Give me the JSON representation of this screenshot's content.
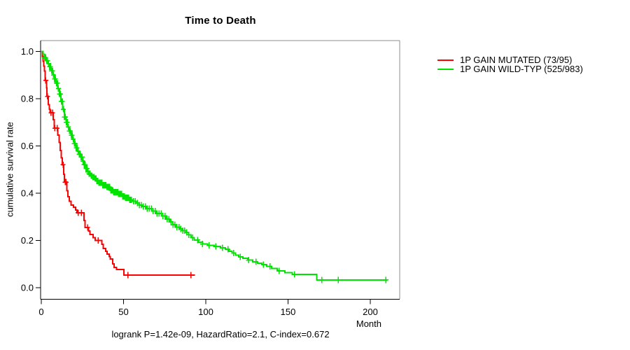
{
  "chart_data": {
    "type": "line",
    "subtype": "kaplan-meier-step",
    "title": "Time to Death",
    "xlabel": "Month",
    "ylabel": "cumulative survival rate",
    "annotation": "logrank P=1.42e-09, HazardRatio=2.1, C-index=0.672",
    "x_ticks": [
      0,
      50,
      100,
      150,
      200
    ],
    "x_tick_labels": [
      "0",
      "50",
      "100",
      "150",
      "200"
    ],
    "y_ticks": [
      0.0,
      0.2,
      0.4,
      0.6,
      0.8,
      1.0
    ],
    "y_tick_labels": [
      "0.0",
      "0.2",
      "0.4",
      "0.6",
      "0.8",
      "1.0"
    ],
    "xlim": [
      0,
      218
    ],
    "ylim": [
      0,
      1
    ],
    "grid": false,
    "legend_position": "right-outside",
    "colors": {
      "axis": "#000000",
      "frame": "#8e8e8e",
      "background": "#ffffff"
    },
    "series": [
      {
        "name": "1P GAIN MUTATED (73/95)",
        "color": "#ff0000",
        "start": [
          0,
          1.0
        ],
        "end_month": 93.5,
        "steps": [
          [
            0.7,
            0.979
          ],
          [
            1.1,
            0.958
          ],
          [
            1.5,
            0.937
          ],
          [
            1.9,
            0.916
          ],
          [
            2.3,
            0.877
          ],
          [
            3.1,
            0.845
          ],
          [
            3.5,
            0.81
          ],
          [
            4.2,
            0.775
          ],
          [
            4.8,
            0.755
          ],
          [
            5.4,
            0.74
          ],
          [
            7.3,
            0.71
          ],
          [
            7.8,
            0.675
          ],
          [
            10.1,
            0.645
          ],
          [
            10.8,
            0.615
          ],
          [
            11.5,
            0.58
          ],
          [
            12.1,
            0.55
          ],
          [
            12.7,
            0.52
          ],
          [
            13.7,
            0.48
          ],
          [
            14.1,
            0.447
          ],
          [
            15.6,
            0.41
          ],
          [
            16.2,
            0.385
          ],
          [
            17.1,
            0.365
          ],
          [
            18.1,
            0.35
          ],
          [
            19.5,
            0.34
          ],
          [
            20.8,
            0.329
          ],
          [
            21.8,
            0.317
          ],
          [
            26.0,
            0.285
          ],
          [
            26.6,
            0.255
          ],
          [
            28.8,
            0.24
          ],
          [
            29.6,
            0.225
          ],
          [
            31.4,
            0.212
          ],
          [
            32.8,
            0.2
          ],
          [
            36.8,
            0.183
          ],
          [
            37.6,
            0.166
          ],
          [
            39.2,
            0.154
          ],
          [
            40.0,
            0.142
          ],
          [
            41.2,
            0.132
          ],
          [
            42.0,
            0.121
          ],
          [
            43.4,
            0.1
          ],
          [
            44.2,
            0.086
          ],
          [
            45.8,
            0.077
          ],
          [
            50.2,
            0.053
          ]
        ],
        "censor_months": [
          2.7,
          3.8,
          5.9,
          6.8,
          8.2,
          9.6,
          13.2,
          14.5,
          15.0,
          22.4,
          24.4,
          28.1,
          34.6,
          52.6,
          91.0
        ]
      },
      {
        "name": "1P GAIN WILD-TYP (525/983)",
        "color": "#00e300",
        "start": [
          0,
          1.0
        ],
        "end_month": 210.5,
        "steps": [
          [
            1,
            0.987
          ],
          [
            2,
            0.974
          ],
          [
            3,
            0.961
          ],
          [
            4,
            0.948
          ],
          [
            5,
            0.935
          ],
          [
            6,
            0.918
          ],
          [
            7,
            0.9
          ],
          [
            8,
            0.883
          ],
          [
            9,
            0.865
          ],
          [
            10,
            0.843
          ],
          [
            11,
            0.82
          ],
          [
            12,
            0.788
          ],
          [
            13,
            0.755
          ],
          [
            14,
            0.722
          ],
          [
            15,
            0.7
          ],
          [
            16,
            0.68
          ],
          [
            17,
            0.663
          ],
          [
            18,
            0.645
          ],
          [
            19,
            0.628
          ],
          [
            20,
            0.61
          ],
          [
            21,
            0.592
          ],
          [
            22,
            0.578
          ],
          [
            23,
            0.565
          ],
          [
            24,
            0.553
          ],
          [
            25,
            0.536
          ],
          [
            26,
            0.52
          ],
          [
            27,
            0.505
          ],
          [
            28,
            0.49
          ],
          [
            29,
            0.482
          ],
          [
            30,
            0.474
          ],
          [
            31,
            0.468
          ],
          [
            32.3,
            0.462
          ],
          [
            33.6,
            0.452
          ],
          [
            35,
            0.444
          ],
          [
            37,
            0.434
          ],
          [
            39.4,
            0.426
          ],
          [
            42,
            0.412
          ],
          [
            44,
            0.404
          ],
          [
            46.5,
            0.397
          ],
          [
            49,
            0.387
          ],
          [
            51,
            0.38
          ],
          [
            53.6,
            0.372
          ],
          [
            55.5,
            0.365
          ],
          [
            57.5,
            0.358
          ],
          [
            59.5,
            0.35
          ],
          [
            61.4,
            0.344
          ],
          [
            64,
            0.334
          ],
          [
            67,
            0.324
          ],
          [
            70,
            0.314
          ],
          [
            73,
            0.304
          ],
          [
            76,
            0.29
          ],
          [
            78,
            0.278
          ],
          [
            80,
            0.266
          ],
          [
            82,
            0.256
          ],
          [
            84,
            0.249
          ],
          [
            86,
            0.242
          ],
          [
            88,
            0.234
          ],
          [
            89.5,
            0.224
          ],
          [
            91,
            0.212
          ],
          [
            93,
            0.202
          ],
          [
            95.5,
            0.193
          ],
          [
            98,
            0.185
          ],
          [
            101,
            0.179
          ],
          [
            105,
            0.174
          ],
          [
            109,
            0.169
          ],
          [
            112,
            0.163
          ],
          [
            114,
            0.154
          ],
          [
            116,
            0.146
          ],
          [
            118,
            0.138
          ],
          [
            120,
            0.131
          ],
          [
            122.5,
            0.124
          ],
          [
            125.5,
            0.117
          ],
          [
            128.5,
            0.11
          ],
          [
            131.5,
            0.103
          ],
          [
            134,
            0.097
          ],
          [
            137,
            0.091
          ],
          [
            140,
            0.081
          ],
          [
            143.5,
            0.071
          ],
          [
            148,
            0.064
          ],
          [
            152.5,
            0.056
          ],
          [
            167.5,
            0.033
          ]
        ],
        "censor_months": [
          2.0,
          2.6,
          3.2,
          3.8,
          4.4,
          5.0,
          5.6,
          6.2,
          6.8,
          7.4,
          8.0,
          8.6,
          9.2,
          9.8,
          10.4,
          11.0,
          11.6,
          12.2,
          12.8,
          13.4,
          14.0,
          14.6,
          15.2,
          15.8,
          16.4,
          17.0,
          17.6,
          18.2,
          18.8,
          19.4,
          20.0,
          20.6,
          21.2,
          21.8,
          22.4,
          23.0,
          23.6,
          24.2,
          24.8,
          25.4,
          26.0,
          26.6,
          27.2,
          27.8,
          28.4,
          29.0,
          29.6,
          30.2,
          30.8,
          31.4,
          32.0,
          32.6,
          33.2,
          33.8,
          34.4,
          35.0,
          35.6,
          36.2,
          36.8,
          37.4,
          38.0,
          38.6,
          39.2,
          39.8,
          40.4,
          41.0,
          41.6,
          42.2,
          42.8,
          43.4,
          44.0,
          44.6,
          45.2,
          45.8,
          46.4,
          47.0,
          47.6,
          48.2,
          48.8,
          49.4,
          50.0,
          50.6,
          51.2,
          51.8,
          52.4,
          53.0,
          53.6,
          54.2,
          54.8,
          56.0,
          57.2,
          58.4,
          59.6,
          60.8,
          62.0,
          63.2,
          64.4,
          65.6,
          66.8,
          68.0,
          69.2,
          70.4,
          71.6,
          72.8,
          74.0,
          75.2,
          76.4,
          77.6,
          78.8,
          80.0,
          81.2,
          82.4,
          83.6,
          84.8,
          86.0,
          87.2,
          88.4,
          89.6,
          92.0,
          95.0,
          98.0,
          102.0,
          106.0,
          110.0,
          113.5,
          117.0,
          121.0,
          126.0,
          130.5,
          135.0,
          139.0,
          144.5,
          154.0,
          170.5,
          180.5,
          209.5
        ]
      }
    ]
  }
}
